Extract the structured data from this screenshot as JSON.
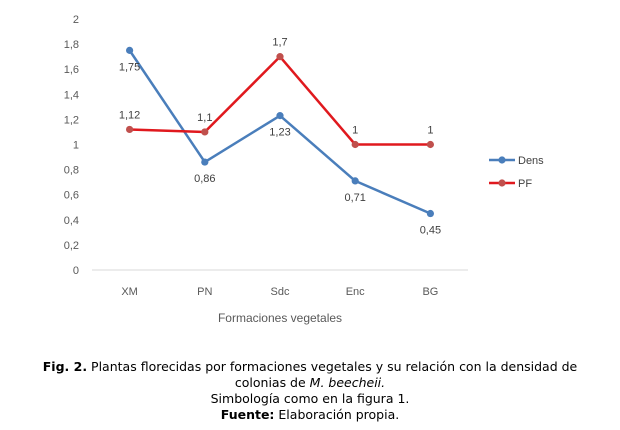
{
  "chart_data": {
    "type": "line",
    "title": "",
    "xlabel": "Formaciones vegetales",
    "ylabel": "",
    "categories": [
      "XM",
      "PN",
      "Sdc",
      "Enc",
      "BG"
    ],
    "ylim": [
      0,
      2
    ],
    "yticks": [
      "0",
      "0,2",
      "0,4",
      "0,6",
      "0,8",
      "1",
      "1,2",
      "1,4",
      "1,6",
      "1,8",
      "2"
    ],
    "grid": false,
    "legend_position": "right",
    "series": [
      {
        "name": "Dens",
        "color": "#4a7ebb",
        "values": [
          1.75,
          0.86,
          1.23,
          0.71,
          0.45
        ],
        "labels": [
          "1,75",
          "0,86",
          "1,23",
          "0,71",
          "0,45"
        ],
        "label_pos": "below"
      },
      {
        "name": "PF",
        "color": "#e0191e",
        "marker_color": "#c0504d",
        "values": [
          1.12,
          1.1,
          1.7,
          1,
          1
        ],
        "labels": [
          "1,12",
          "1,1",
          "1,7",
          "1",
          "1"
        ],
        "label_pos": "above"
      }
    ]
  },
  "caption": {
    "fig_label": "Fig. 2.",
    "line1": " Plantas florecidas por formaciones vegetales y su relación con la densidad de",
    "line2_pre": "colonias de ",
    "line2_italic": "M. beecheii.",
    "line3": "Simbología como en la figura 1.",
    "source_label": "Fuente:",
    "source_text": " Elaboración propia."
  }
}
